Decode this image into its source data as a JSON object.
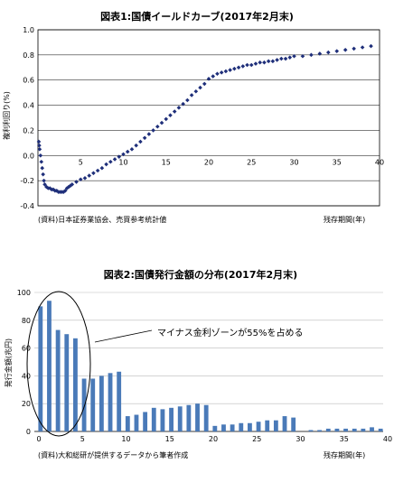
{
  "chart_data": [
    {
      "type": "scatter",
      "title": "図表1:国債イールドカーブ(2017年2月末)",
      "ylabel": "複利利回り(%)",
      "xlabel": "残存期間(年)",
      "source": "(資料)日本証券業協会、売買参考統計値",
      "xlim": [
        0,
        40
      ],
      "ylim": [
        -0.4,
        1.0
      ],
      "xticks": [
        5,
        10,
        15,
        20,
        25,
        30,
        35,
        40
      ],
      "yticks": [
        "-0.4",
        "-0.2",
        "0.0",
        "0.2",
        "0.4",
        "0.6",
        "0.8",
        "1.0"
      ],
      "grid": true,
      "color": "#1f2f7a",
      "points": [
        [
          0.1,
          0.11
        ],
        [
          0.15,
          0.08
        ],
        [
          0.2,
          0.05
        ],
        [
          0.3,
          0.0
        ],
        [
          0.4,
          -0.05
        ],
        [
          0.5,
          -0.1
        ],
        [
          0.6,
          -0.15
        ],
        [
          0.7,
          -0.2
        ],
        [
          0.8,
          -0.23
        ],
        [
          1.0,
          -0.25
        ],
        [
          1.2,
          -0.26
        ],
        [
          1.4,
          -0.26
        ],
        [
          1.6,
          -0.27
        ],
        [
          1.8,
          -0.27
        ],
        [
          2.0,
          -0.28
        ],
        [
          2.2,
          -0.28
        ],
        [
          2.4,
          -0.29
        ],
        [
          2.6,
          -0.29
        ],
        [
          2.8,
          -0.29
        ],
        [
          3.0,
          -0.29
        ],
        [
          3.2,
          -0.28
        ],
        [
          3.4,
          -0.26
        ],
        [
          3.6,
          -0.25
        ],
        [
          3.8,
          -0.24
        ],
        [
          4.0,
          -0.23
        ],
        [
          4.5,
          -0.21
        ],
        [
          5.0,
          -0.19
        ],
        [
          5.5,
          -0.18
        ],
        [
          6.0,
          -0.16
        ],
        [
          6.5,
          -0.14
        ],
        [
          7.0,
          -0.12
        ],
        [
          7.5,
          -0.1
        ],
        [
          8.0,
          -0.07
        ],
        [
          8.5,
          -0.05
        ],
        [
          9.0,
          -0.03
        ],
        [
          9.5,
          -0.01
        ],
        [
          10.0,
          0.01
        ],
        [
          10.5,
          0.03
        ],
        [
          11.0,
          0.05
        ],
        [
          11.5,
          0.08
        ],
        [
          12.0,
          0.11
        ],
        [
          12.5,
          0.14
        ],
        [
          13.0,
          0.17
        ],
        [
          13.5,
          0.2
        ],
        [
          14.0,
          0.23
        ],
        [
          14.5,
          0.26
        ],
        [
          15.0,
          0.29
        ],
        [
          15.5,
          0.32
        ],
        [
          16.0,
          0.35
        ],
        [
          16.5,
          0.38
        ],
        [
          17.0,
          0.41
        ],
        [
          17.5,
          0.44
        ],
        [
          18.0,
          0.48
        ],
        [
          18.5,
          0.51
        ],
        [
          19.0,
          0.54
        ],
        [
          19.5,
          0.57
        ],
        [
          20.0,
          0.61
        ],
        [
          20.5,
          0.63
        ],
        [
          21.0,
          0.65
        ],
        [
          21.5,
          0.66
        ],
        [
          22.0,
          0.67
        ],
        [
          22.5,
          0.68
        ],
        [
          23.0,
          0.69
        ],
        [
          23.5,
          0.7
        ],
        [
          24.0,
          0.71
        ],
        [
          24.5,
          0.72
        ],
        [
          25.0,
          0.72
        ],
        [
          25.5,
          0.73
        ],
        [
          26.0,
          0.74
        ],
        [
          26.5,
          0.74
        ],
        [
          27.0,
          0.75
        ],
        [
          27.5,
          0.75
        ],
        [
          28.0,
          0.76
        ],
        [
          28.5,
          0.77
        ],
        [
          29.0,
          0.77
        ],
        [
          29.5,
          0.78
        ],
        [
          30.0,
          0.79
        ],
        [
          31.0,
          0.79
        ],
        [
          32.0,
          0.8
        ],
        [
          33.0,
          0.81
        ],
        [
          34.0,
          0.82
        ],
        [
          35.0,
          0.83
        ],
        [
          36.0,
          0.84
        ],
        [
          37.0,
          0.85
        ],
        [
          38.0,
          0.86
        ],
        [
          39.0,
          0.87
        ]
      ]
    },
    {
      "type": "bar",
      "title": "図表2:国債発行金額の分布(2017年2月末)",
      "ylabel": "発行金額(兆円)",
      "xlabel": "残存期間(年)",
      "source": "(資料)大和総研が提供するデータから筆者作成",
      "annotation": "マイナス金利ゾーンが55%を占める",
      "xlim": [
        0,
        40
      ],
      "ylim": [
        0,
        100
      ],
      "xticks": [
        0,
        5,
        10,
        15,
        20,
        25,
        30,
        35,
        40
      ],
      "yticks": [
        "0",
        "20",
        "40",
        "60",
        "80",
        "100"
      ],
      "grid": true,
      "color": "#4a7ab8",
      "categories": [
        0,
        1,
        2,
        3,
        4,
        5,
        6,
        7,
        8,
        9,
        10,
        11,
        12,
        13,
        14,
        15,
        16,
        17,
        18,
        19,
        20,
        21,
        22,
        23,
        24,
        25,
        26,
        27,
        28,
        29,
        30,
        31,
        32,
        33,
        34,
        35,
        36,
        37,
        38,
        39
      ],
      "values": [
        90,
        94,
        73,
        70,
        67,
        38,
        38,
        40,
        42,
        43,
        11,
        12,
        14,
        17,
        16,
        17,
        18,
        19,
        20,
        19,
        4,
        5,
        5,
        6,
        6,
        7,
        8,
        8,
        11,
        10,
        0,
        1,
        1,
        2,
        2,
        2,
        2,
        2,
        3,
        2
      ]
    }
  ]
}
